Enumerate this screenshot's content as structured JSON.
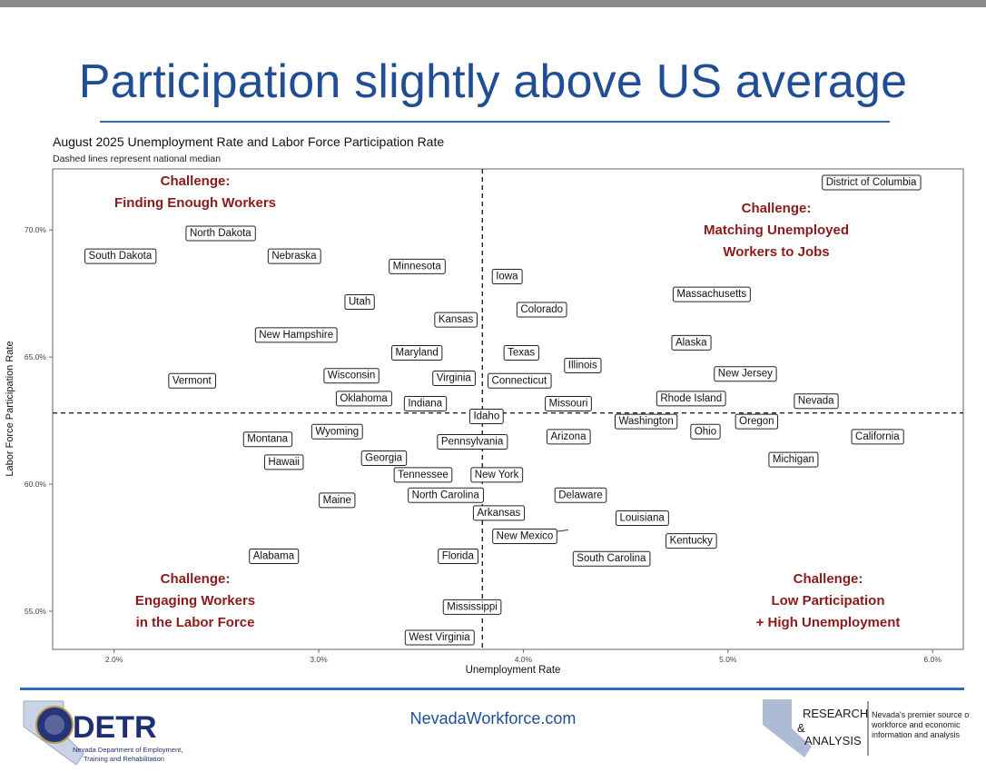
{
  "slide": {
    "title": "Participation slightly above US average",
    "footer_url": "NevadaWorkforce.com"
  },
  "logos": {
    "detr": {
      "name": "DETR",
      "subtitle_line1": "Nevada Department of Employment,",
      "subtitle_line2": "Training and Rehabilitation"
    },
    "ra": {
      "name_line1": "RESEARCH",
      "name_amp": "&",
      "name_line2": "ANALYSIS",
      "tag1": "Nevada's premier source of",
      "tag2": "workforce and economic",
      "tag3": "information and analysis"
    }
  },
  "colors": {
    "title_blue": "#1f4e96",
    "rule_blue": "#2e6bbd",
    "challenge_red": "#8b1a1a"
  },
  "chart_data": {
    "type": "scatter",
    "title": "August 2025 Unemployment Rate and Labor Force Participation Rate",
    "subtitle": "Dashed lines represent national median",
    "xlabel": "Unemployment Rate",
    "ylabel": "Labor Force Participation Rate",
    "xlim": [
      1.7,
      6.15
    ],
    "ylim": [
      53.5,
      72.4
    ],
    "xticks": [
      2.0,
      3.0,
      4.0,
      5.0,
      6.0
    ],
    "xtick_labels": [
      "2.0%",
      "3.0%",
      "4.0%",
      "5.0%",
      "6.0%"
    ],
    "yticks": [
      55.0,
      60.0,
      65.0,
      70.0
    ],
    "ytick_labels": [
      "55.0%",
      "60.0%",
      "65.0%",
      "70.0%"
    ],
    "reference_lines": {
      "x_median": 3.8,
      "y_median": 62.8
    },
    "quadrant_labels": [
      {
        "lines": [
          "Challenge:",
          "Finding Enough Workers"
        ],
        "position": "top-left"
      },
      {
        "lines": [
          "Challenge:",
          "Matching Unemployed",
          "Workers to Jobs"
        ],
        "position": "top-right"
      },
      {
        "lines": [
          "Challenge:",
          "Engaging Workers",
          "in the Labor Force"
        ],
        "position": "bottom-left"
      },
      {
        "lines": [
          "Challenge:",
          "Low Participation",
          "+ High Unemployment"
        ],
        "position": "bottom-right"
      }
    ],
    "points": [
      {
        "label": "District of Columbia",
        "x": 5.7,
        "y": 71.9
      },
      {
        "label": "North Dakota",
        "x": 2.52,
        "y": 69.9
      },
      {
        "label": "South Dakota",
        "x": 2.03,
        "y": 69.0
      },
      {
        "label": "Nebraska",
        "x": 2.88,
        "y": 69.0
      },
      {
        "label": "Minnesota",
        "x": 3.48,
        "y": 68.6
      },
      {
        "label": "Iowa",
        "x": 3.92,
        "y": 68.2
      },
      {
        "label": "Massachusetts",
        "x": 4.92,
        "y": 67.5
      },
      {
        "label": "Utah",
        "x": 3.2,
        "y": 67.2
      },
      {
        "label": "Colorado",
        "x": 4.09,
        "y": 66.9
      },
      {
        "label": "Kansas",
        "x": 3.67,
        "y": 66.5
      },
      {
        "label": "New Hampshire",
        "x": 2.89,
        "y": 65.9
      },
      {
        "label": "Alaska",
        "x": 4.82,
        "y": 65.6
      },
      {
        "label": "Maryland",
        "x": 3.48,
        "y": 65.2
      },
      {
        "label": "Texas",
        "x": 3.99,
        "y": 65.2
      },
      {
        "label": "Illinois",
        "x": 4.29,
        "y": 64.7
      },
      {
        "label": "Wisconsin",
        "x": 3.16,
        "y": 64.3
      },
      {
        "label": "Virginia",
        "x": 3.66,
        "y": 64.2
      },
      {
        "label": "Connecticut",
        "x": 3.98,
        "y": 64.1
      },
      {
        "label": "New Jersey",
        "x": 5.04,
        "y": 64.3
      },
      {
        "label": "Vermont",
        "x": 2.38,
        "y": 64.1
      },
      {
        "label": "Rhode Island",
        "x": 4.82,
        "y": 63.4
      },
      {
        "label": "Oklahoma",
        "x": 3.22,
        "y": 63.4
      },
      {
        "label": "Indiana",
        "x": 3.52,
        "y": 63.2
      },
      {
        "label": "Missouri",
        "x": 4.22,
        "y": 63.2
      },
      {
        "label": "Nevada",
        "x": 5.43,
        "y": 63.3
      },
      {
        "label": "Idaho",
        "x": 3.82,
        "y": 62.7
      },
      {
        "label": "Washington",
        "x": 4.6,
        "y": 62.5
      },
      {
        "label": "Oregon",
        "x": 5.14,
        "y": 62.5
      },
      {
        "label": "Wyoming",
        "x": 3.09,
        "y": 62.1
      },
      {
        "label": "Ohio",
        "x": 4.89,
        "y": 62.1
      },
      {
        "label": "Montana",
        "x": 2.75,
        "y": 61.8
      },
      {
        "label": "Arizona",
        "x": 4.22,
        "y": 61.9
      },
      {
        "label": "California",
        "x": 5.73,
        "y": 61.9
      },
      {
        "label": "Pennsylvania",
        "x": 3.75,
        "y": 61.7
      },
      {
        "label": "Georgia",
        "x": 3.3,
        "y": 61.2
      },
      {
        "label": "Hawaii",
        "x": 2.83,
        "y": 60.9
      },
      {
        "label": "Michigan",
        "x": 5.32,
        "y": 61.0
      },
      {
        "label": "Tennessee",
        "x": 3.51,
        "y": 60.4
      },
      {
        "label": "New York",
        "x": 3.87,
        "y": 60.4
      },
      {
        "label": "North Carolina",
        "x": 3.62,
        "y": 59.6
      },
      {
        "label": "Delaware",
        "x": 4.28,
        "y": 59.6
      },
      {
        "label": "Maine",
        "x": 3.09,
        "y": 59.4
      },
      {
        "label": "Arkansas",
        "x": 3.88,
        "y": 58.9
      },
      {
        "label": "Louisiana",
        "x": 4.58,
        "y": 58.7
      },
      {
        "label": "New Mexico",
        "x": 4.22,
        "y": 58.2
      },
      {
        "label": "Kentucky",
        "x": 4.82,
        "y": 57.8
      },
      {
        "label": "Alabama",
        "x": 2.78,
        "y": 57.2
      },
      {
        "label": "Florida",
        "x": 3.68,
        "y": 57.2
      },
      {
        "label": "South Carolina",
        "x": 4.43,
        "y": 57.1
      },
      {
        "label": "Mississippi",
        "x": 3.75,
        "y": 55.2
      },
      {
        "label": "West Virginia",
        "x": 3.59,
        "y": 54.0
      }
    ]
  }
}
